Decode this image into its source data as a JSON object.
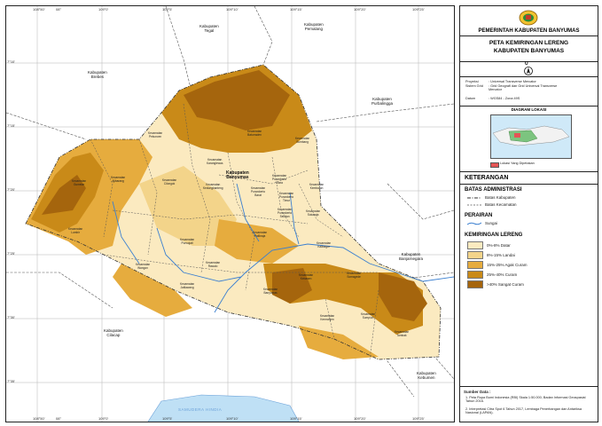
{
  "map": {
    "neighbors": [
      {
        "id": "tegal",
        "text": "Kabupaten\nTegal"
      },
      {
        "id": "pemalang",
        "text": "Kabupaten\nPemalang"
      },
      {
        "id": "brebes",
        "text": "Kabupaten\nBrebes"
      },
      {
        "id": "purbalingga",
        "text": "Kabupaten\nPurbalingga"
      },
      {
        "id": "banjarnegara",
        "text": "Kabupaten\nBanjarnegara"
      },
      {
        "id": "cilacap",
        "text": "Kabupaten\nCilacap"
      },
      {
        "id": "kebumen",
        "text": "Kabupaten\nKebumen"
      }
    ],
    "center_label": "Kabupaten\nBanyumas",
    "sea_label": "SAMUDERA HINDIA",
    "kecamatan": [
      "Kecamatan\nCilongok",
      "Kecamatan\nPekuncen",
      "Kecamatan\nAjibarang",
      "Kecamatan\nGumelar",
      "Kecamatan\nLumbir",
      "Kecamatan\nWangon",
      "Kecamatan\nJatilawang",
      "Kecamatan\nRawalo",
      "Kecamatan\nPurwojati",
      "Kecamatan\nKaranglewas",
      "Kecamatan\nBaturraden",
      "Kecamatan\nSumbang",
      "Kecamatan\nKembaran",
      "Kecamatan\nSokaraja",
      "Kecamatan\nKalibagor",
      "Kecamatan\nBanyumas",
      "Kecamatan\nSomagede",
      "Kecamatan\nKemranjen",
      "Kecamatan\nSumpiuh",
      "Kecamatan\nTambak",
      "Kecamatan\nKebasen",
      "Kecamatan\nPatikraja",
      "Kecamatan\nPurwokerto\nUtara",
      "Kecamatan\nPurwokerto\nSelatan",
      "Kecamatan\nKedungbanteng",
      "Kecamatan\nPurwokerto\nBarat",
      "Kecamatan\nPurwokerto\nTimur"
    ],
    "ticks_top": [
      "108°50'",
      "08°",
      "109°0'",
      "109°5'",
      "109°10'",
      "109°15'",
      "109°20'",
      "109°25'",
      "109°30'",
      "01°"
    ],
    "ticks_bottom": [
      "108°50'",
      "08°",
      "109°0'",
      "109°5'",
      "109°10'",
      "109°15'",
      "109°20'",
      "109°25'",
      "109°30'",
      "01°"
    ],
    "ticks_left": [
      "7°10'",
      "7°15'",
      "7°20'",
      "7°25'",
      "7°30'",
      "7°35'",
      "7°40'",
      "7°45'"
    ]
  },
  "panel": {
    "org": "PEMERINTAH KABUPATEN BANYUMAS",
    "title1": "PETA KEMIRINGAN LERENG",
    "title2": "KABUPATEN BANYUMAS",
    "north": "U",
    "proj_rows": [
      {
        "k": "Proyeksi",
        "v": ": Universal Transverse Mercator"
      },
      {
        "k": "Sistem Grid",
        "v": ": Grid Geografi dan Grid Universal Transverse Mercator"
      },
      {
        "k": "Datum",
        "v": ": WGS84 - Zona 49S"
      }
    ],
    "inset_title": "DIAGRAM LOKASI",
    "inset_legend": "Lokasi Yang Dipetakan",
    "keterangan": "KETERANGAN",
    "batas_title": "BATAS ADMINISTRASI",
    "batas_items": [
      "Batas Kabupaten",
      "Batas Kecamatan"
    ],
    "perairan_title": "PERAIRAN",
    "perairan_item": "Sungai",
    "lereng_title": "KEMIRINGAN LERENG",
    "lereng_items": [
      {
        "label": "0%-8% Datar",
        "color": "#fbeac0"
      },
      {
        "label": "8%-15% Landai",
        "color": "#f3d48a"
      },
      {
        "label": "15%-25% Agak Curam",
        "color": "#e6ac3e"
      },
      {
        "label": "25%-40% Curam",
        "color": "#c98a18"
      },
      {
        "label": ">40% Sangat Curam",
        "color": "#a5650d"
      }
    ],
    "sumber_title": "Sumber Data :",
    "sumber_items": [
      "1.  Peta Rupa Bumi Indonesia (RBI) Skala 1:50.000, Badan Informasi Geospasial Tahun 2016.",
      "2.  Interpretasi Citra Spot 6 Tahun 2017, Lembaga Penerbangan dan Antariksa Nasional (LAPAN)."
    ]
  }
}
